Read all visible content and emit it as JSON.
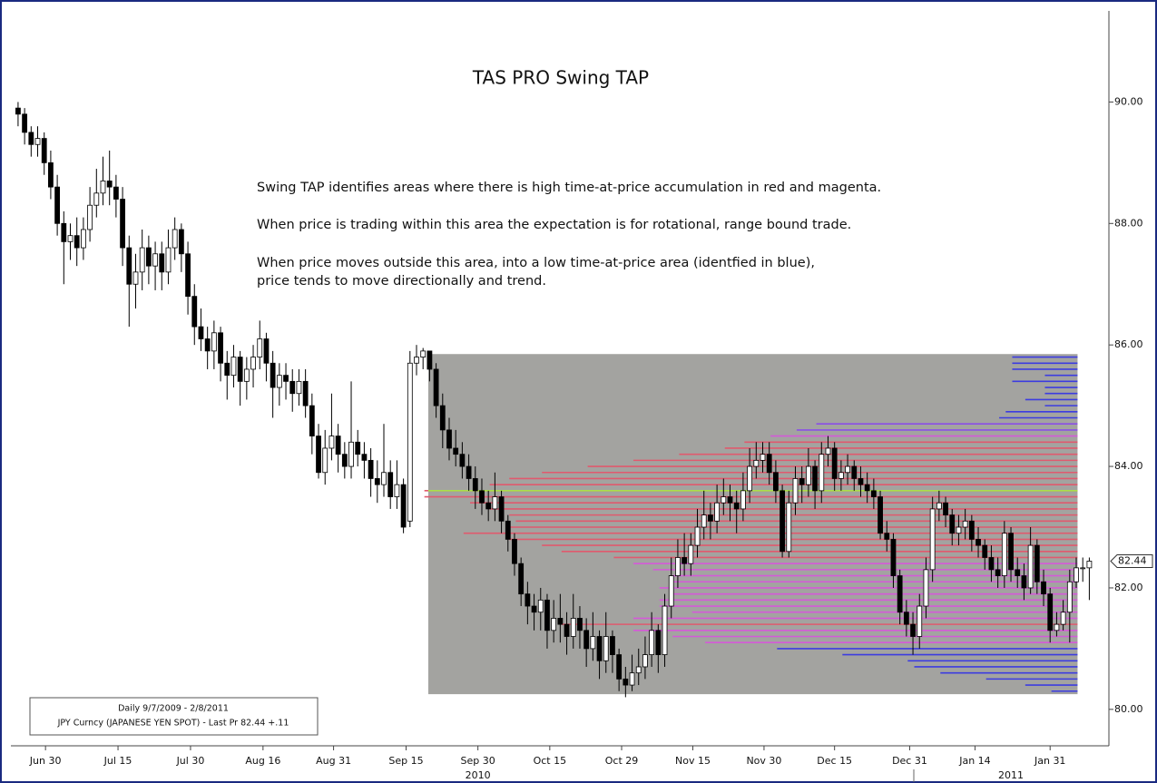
{
  "chart_data": {
    "type": "candlestick",
    "title": "TAS PRO Swing TAP",
    "annotations": [
      "Swing TAP identifies areas where there is high time-at-price accumulation in red and magenta.",
      "When price is trading within this area the expectation is for rotational, range bound trade.",
      "When price moves outside this area, into a low time-at-price area (identfied in blue),",
      "price tends to move directionally and trend."
    ],
    "info_box": [
      "Daily 9/7/2009 - 2/8/2011",
      "JPY Curncy (JAPANESE YEN SPOT) - Last Pr 82.44  +.11"
    ],
    "last_price": 82.44,
    "up_color": "#ffffff",
    "down_color": "#000000",
    "xlim": [
      -1.1,
      167
    ],
    "xticks": [
      {
        "value": 4.2,
        "label": "Jun 30"
      },
      {
        "value": 15.3,
        "label": "Jul 15"
      },
      {
        "value": 26.4,
        "label": "Jul 30"
      },
      {
        "value": 37.5,
        "label": "Aug 16"
      },
      {
        "value": 48.3,
        "label": "Aug 31"
      },
      {
        "value": 59.4,
        "label": "Sep 15"
      },
      {
        "value": 70.4,
        "label": "Sep 30"
      },
      {
        "value": 81.4,
        "label": "Oct 15"
      },
      {
        "value": 92.4,
        "label": "Oct 29"
      },
      {
        "value": 103.3,
        "label": "Nov 15"
      },
      {
        "value": 114.2,
        "label": "Nov 30"
      },
      {
        "value": 125,
        "label": "Dec 15"
      },
      {
        "value": 136.5,
        "label": "Dec 31"
      },
      {
        "value": 146.5,
        "label": "Jan 14"
      },
      {
        "value": 158,
        "label": "Jan 31"
      }
    ],
    "x_year_labels": [
      {
        "value": 70.4,
        "label": "2010"
      },
      {
        "value": 152,
        "label": "2011"
      }
    ],
    "ylim": [
      79.4,
      91.5
    ],
    "yticks": [
      {
        "value": 80,
        "label": "80.00"
      },
      {
        "value": 82,
        "label": "82.00"
      },
      {
        "value": 84,
        "label": "84.00"
      },
      {
        "value": 86,
        "label": "86.00"
      },
      {
        "value": 88,
        "label": "88.00"
      },
      {
        "value": 90,
        "label": "90.00"
      }
    ],
    "ohlc": [
      [
        89.9,
        90.0,
        89.6,
        89.8
      ],
      [
        89.8,
        89.9,
        89.3,
        89.5
      ],
      [
        89.5,
        89.6,
        89.1,
        89.3
      ],
      [
        89.3,
        89.6,
        89.1,
        89.4
      ],
      [
        89.4,
        89.5,
        88.8,
        89.0
      ],
      [
        89.0,
        89.2,
        88.4,
        88.6
      ],
      [
        88.6,
        88.8,
        87.8,
        88.0
      ],
      [
        88.0,
        88.2,
        87.0,
        87.7
      ],
      [
        87.7,
        88.0,
        87.4,
        87.8
      ],
      [
        87.8,
        88.1,
        87.3,
        87.6
      ],
      [
        87.6,
        88.1,
        87.4,
        87.9
      ],
      [
        87.9,
        88.6,
        87.7,
        88.3
      ],
      [
        88.3,
        88.9,
        88.1,
        88.5
      ],
      [
        88.5,
        89.1,
        88.3,
        88.7
      ],
      [
        88.7,
        89.2,
        88.3,
        88.6
      ],
      [
        88.6,
        88.8,
        88.1,
        88.4
      ],
      [
        88.4,
        88.6,
        87.3,
        87.6
      ],
      [
        87.6,
        87.8,
        86.3,
        87.0
      ],
      [
        87.0,
        87.5,
        86.6,
        87.2
      ],
      [
        87.2,
        87.9,
        86.9,
        87.6
      ],
      [
        87.6,
        87.8,
        87.0,
        87.3
      ],
      [
        87.3,
        87.7,
        86.9,
        87.5
      ],
      [
        87.5,
        87.7,
        86.9,
        87.2
      ],
      [
        87.2,
        87.9,
        87.0,
        87.6
      ],
      [
        87.6,
        88.1,
        87.4,
        87.9
      ],
      [
        87.9,
        88.0,
        87.2,
        87.5
      ],
      [
        87.5,
        87.7,
        86.5,
        86.8
      ],
      [
        86.8,
        87.0,
        86.0,
        86.3
      ],
      [
        86.3,
        86.6,
        85.9,
        86.1
      ],
      [
        86.1,
        86.3,
        85.6,
        85.9
      ],
      [
        85.9,
        86.4,
        85.6,
        86.2
      ],
      [
        86.2,
        86.3,
        85.4,
        85.7
      ],
      [
        85.7,
        85.9,
        85.1,
        85.5
      ],
      [
        85.5,
        86.0,
        85.3,
        85.8
      ],
      [
        85.8,
        85.9,
        85.0,
        85.4
      ],
      [
        85.4,
        85.8,
        85.1,
        85.6
      ],
      [
        85.6,
        86.0,
        85.3,
        85.8
      ],
      [
        85.8,
        86.4,
        85.6,
        86.1
      ],
      [
        86.1,
        86.2,
        85.4,
        85.7
      ],
      [
        85.7,
        85.9,
        84.8,
        85.3
      ],
      [
        85.3,
        85.7,
        85.0,
        85.5
      ],
      [
        85.5,
        85.7,
        85.1,
        85.4
      ],
      [
        85.4,
        85.6,
        84.9,
        85.2
      ],
      [
        85.2,
        85.6,
        85.0,
        85.4
      ],
      [
        85.4,
        85.6,
        84.8,
        85.0
      ],
      [
        85.0,
        85.2,
        84.2,
        84.5
      ],
      [
        84.5,
        84.7,
        83.8,
        83.9
      ],
      [
        83.9,
        84.6,
        83.7,
        84.3
      ],
      [
        84.3,
        85.2,
        84.1,
        84.5
      ],
      [
        84.5,
        84.7,
        83.9,
        84.2
      ],
      [
        84.2,
        84.4,
        83.8,
        84.0
      ],
      [
        84.0,
        85.4,
        83.8,
        84.4
      ],
      [
        84.4,
        84.6,
        84.0,
        84.2
      ],
      [
        84.2,
        84.4,
        83.8,
        84.1
      ],
      [
        84.1,
        84.3,
        83.5,
        83.8
      ],
      [
        83.8,
        84.1,
        83.4,
        83.7
      ],
      [
        83.7,
        84.7,
        83.5,
        83.9
      ],
      [
        83.9,
        84.1,
        83.3,
        83.5
      ],
      [
        83.5,
        84.1,
        83.3,
        83.7
      ],
      [
        83.7,
        83.8,
        82.9,
        83.0
      ],
      [
        83.1,
        85.9,
        83.0,
        85.7
      ],
      [
        85.7,
        86.0,
        85.5,
        85.8
      ],
      [
        85.8,
        85.95,
        85.6,
        85.9
      ],
      [
        85.9,
        85.9,
        85.4,
        85.6
      ],
      [
        85.6,
        85.7,
        84.8,
        85.0
      ],
      [
        85.0,
        85.2,
        84.3,
        84.6
      ],
      [
        84.6,
        84.8,
        84.1,
        84.3
      ],
      [
        84.3,
        84.6,
        84.0,
        84.2
      ],
      [
        84.2,
        84.4,
        83.8,
        84.0
      ],
      [
        84.0,
        84.2,
        83.6,
        83.8
      ],
      [
        83.8,
        84.0,
        83.3,
        83.6
      ],
      [
        83.6,
        83.8,
        83.2,
        83.4
      ],
      [
        83.4,
        83.6,
        83.1,
        83.3
      ],
      [
        83.3,
        83.9,
        83.1,
        83.5
      ],
      [
        83.5,
        83.6,
        82.9,
        83.1
      ],
      [
        83.1,
        83.2,
        82.6,
        82.8
      ],
      [
        82.8,
        82.9,
        82.2,
        82.4
      ],
      [
        82.4,
        82.5,
        81.7,
        81.9
      ],
      [
        81.9,
        82.1,
        81.4,
        81.7
      ],
      [
        81.7,
        81.9,
        81.3,
        81.6
      ],
      [
        81.6,
        82.0,
        81.3,
        81.8
      ],
      [
        81.8,
        81.9,
        81.0,
        81.3
      ],
      [
        81.3,
        81.8,
        81.1,
        81.5
      ],
      [
        81.5,
        81.9,
        81.1,
        81.4
      ],
      [
        81.4,
        81.6,
        80.9,
        81.2
      ],
      [
        81.2,
        81.9,
        81.0,
        81.5
      ],
      [
        81.5,
        81.7,
        81.0,
        81.3
      ],
      [
        81.3,
        81.5,
        80.7,
        81.0
      ],
      [
        81.0,
        81.6,
        80.8,
        81.2
      ],
      [
        81.2,
        81.3,
        80.5,
        80.8
      ],
      [
        80.8,
        81.6,
        80.6,
        81.2
      ],
      [
        81.2,
        81.3,
        80.6,
        80.9
      ],
      [
        80.9,
        81.0,
        80.3,
        80.5
      ],
      [
        80.5,
        80.7,
        80.2,
        80.4
      ],
      [
        80.4,
        80.9,
        80.3,
        80.6
      ],
      [
        80.6,
        81.0,
        80.4,
        80.7
      ],
      [
        80.7,
        81.2,
        80.5,
        80.9
      ],
      [
        80.9,
        81.6,
        80.7,
        81.3
      ],
      [
        81.3,
        81.4,
        80.6,
        80.9
      ],
      [
        80.9,
        81.9,
        80.7,
        81.7
      ],
      [
        81.7,
        82.5,
        81.5,
        82.2
      ],
      [
        82.2,
        82.8,
        82.0,
        82.5
      ],
      [
        82.5,
        82.9,
        82.2,
        82.4
      ],
      [
        82.4,
        82.9,
        82.2,
        82.7
      ],
      [
        82.7,
        83.3,
        82.5,
        83.0
      ],
      [
        83.0,
        83.6,
        82.8,
        83.2
      ],
      [
        83.2,
        83.4,
        82.8,
        83.1
      ],
      [
        83.1,
        83.7,
        82.9,
        83.4
      ],
      [
        83.4,
        83.8,
        83.2,
        83.5
      ],
      [
        83.5,
        83.7,
        83.1,
        83.4
      ],
      [
        83.4,
        83.6,
        82.9,
        83.3
      ],
      [
        83.3,
        83.9,
        83.1,
        83.6
      ],
      [
        83.6,
        84.3,
        83.4,
        84.0
      ],
      [
        84.0,
        84.4,
        83.8,
        84.1
      ],
      [
        84.1,
        84.4,
        83.9,
        84.2
      ],
      [
        84.2,
        84.4,
        83.7,
        83.9
      ],
      [
        83.9,
        84.1,
        83.4,
        83.6
      ],
      [
        83.6,
        83.7,
        82.5,
        82.6
      ],
      [
        82.6,
        83.6,
        82.5,
        83.4
      ],
      [
        83.4,
        84.0,
        83.2,
        83.8
      ],
      [
        83.8,
        84.0,
        83.4,
        83.7
      ],
      [
        83.7,
        84.3,
        83.5,
        84.0
      ],
      [
        84.0,
        84.1,
        83.3,
        83.6
      ],
      [
        83.6,
        84.4,
        83.4,
        84.2
      ],
      [
        84.2,
        84.5,
        84.0,
        84.3
      ],
      [
        84.3,
        84.4,
        83.6,
        83.8
      ],
      [
        83.8,
        84.1,
        83.6,
        83.9
      ],
      [
        83.9,
        84.2,
        83.7,
        84.0
      ],
      [
        84.0,
        84.1,
        83.6,
        83.8
      ],
      [
        83.8,
        84.0,
        83.5,
        83.7
      ],
      [
        83.7,
        83.9,
        83.4,
        83.6
      ],
      [
        83.6,
        83.8,
        83.3,
        83.5
      ],
      [
        83.5,
        83.6,
        82.8,
        82.9
      ],
      [
        82.9,
        83.1,
        82.6,
        82.8
      ],
      [
        82.8,
        82.9,
        82.0,
        82.2
      ],
      [
        82.2,
        82.3,
        81.4,
        81.6
      ],
      [
        81.6,
        81.8,
        81.2,
        81.4
      ],
      [
        81.4,
        81.6,
        80.9,
        81.2
      ],
      [
        81.2,
        81.9,
        81.0,
        81.7
      ],
      [
        81.7,
        82.5,
        81.5,
        82.3
      ],
      [
        82.3,
        83.5,
        82.1,
        83.3
      ],
      [
        83.3,
        83.6,
        83.1,
        83.4
      ],
      [
        83.4,
        83.5,
        83.0,
        83.2
      ],
      [
        83.2,
        83.3,
        82.7,
        82.9
      ],
      [
        82.9,
        83.2,
        82.7,
        83.0
      ],
      [
        83.0,
        83.3,
        82.8,
        83.1
      ],
      [
        83.1,
        83.2,
        82.6,
        82.8
      ],
      [
        82.8,
        83.0,
        82.5,
        82.7
      ],
      [
        82.7,
        82.8,
        82.3,
        82.5
      ],
      [
        82.5,
        82.7,
        82.1,
        82.3
      ],
      [
        82.3,
        82.5,
        82.0,
        82.2
      ],
      [
        82.2,
        83.1,
        82.0,
        82.9
      ],
      [
        82.9,
        83.0,
        82.1,
        82.3
      ],
      [
        82.3,
        82.5,
        82.0,
        82.2
      ],
      [
        82.2,
        82.4,
        81.8,
        82.0
      ],
      [
        82.0,
        83.0,
        81.9,
        82.7
      ],
      [
        82.7,
        82.8,
        81.9,
        82.1
      ],
      [
        82.1,
        82.3,
        81.7,
        81.9
      ],
      [
        81.9,
        82.0,
        81.1,
        81.3
      ],
      [
        81.3,
        81.6,
        81.2,
        81.4
      ],
      [
        81.4,
        81.8,
        81.3,
        81.6
      ],
      [
        81.6,
        82.3,
        81.1,
        82.1
      ],
      [
        82.1,
        82.5,
        82.0,
        82.33
      ],
      [
        82.33,
        82.5,
        82.1,
        82.33
      ],
      [
        82.33,
        82.5,
        81.8,
        82.44
      ]
    ],
    "profile": {
      "box_x": [
        62.8,
        162.2
      ],
      "box_y": [
        80.25,
        85.85
      ],
      "box_color": "#a3a3a0",
      "poc": 83.6,
      "poc_color": "#a8e04a",
      "levels": [
        85.8,
        85.7,
        85.6,
        85.5,
        85.4,
        85.3,
        85.2,
        85.1,
        85.0,
        84.9,
        84.8,
        84.7,
        84.6,
        84.5,
        84.4,
        84.3,
        84.2,
        84.1,
        84.0,
        83.9,
        83.8,
        83.7,
        83.6,
        83.5,
        83.4,
        83.3,
        83.2,
        83.1,
        83.0,
        82.9,
        82.8,
        82.7,
        82.6,
        82.5,
        82.4,
        82.3,
        82.2,
        82.1,
        82.0,
        81.9,
        81.8,
        81.7,
        81.6,
        81.5,
        81.4,
        81.3,
        81.2,
        81.1,
        81.0,
        80.9,
        80.8,
        80.7,
        80.6,
        80.5,
        80.4,
        80.3
      ],
      "counts": [
        10,
        10,
        10,
        5,
        10,
        5,
        5,
        8,
        5,
        11,
        12,
        40,
        43,
        47,
        51,
        54,
        61,
        68,
        75,
        82,
        87,
        90,
        100,
        100,
        93,
        90,
        87,
        86,
        87,
        94,
        87,
        82,
        79,
        71,
        68,
        65,
        62,
        62,
        64,
        62,
        64,
        64,
        59,
        68,
        79,
        68,
        62,
        57,
        46,
        36,
        26,
        25,
        21,
        14,
        8,
        4
      ],
      "colors": [
        "#3c3ce0",
        "#3c3ce0",
        "#3c3ce0",
        "#3c3ce0",
        "#3c3ce0",
        "#3c3ce0",
        "#3c3ce0",
        "#3c3ce0",
        "#3c3ce0",
        "#3c3ce0",
        "#3c3ce0",
        "#8a4fe6",
        "#8a4fe6",
        "#d45ad8",
        "#e05a6e",
        "#e05a6e",
        "#e05a6e",
        "#e05a6e",
        "#e05a6e",
        "#e05a6e",
        "#e05a6e",
        "#e05a6e",
        "#e05a6e",
        "#e05a6e",
        "#e05a6e",
        "#e05a6e",
        "#e05a6e",
        "#e05a6e",
        "#e05a6e",
        "#e05a6e",
        "#e05a6e",
        "#e05a6e",
        "#e05a6e",
        "#e05a6e",
        "#d45ad8",
        "#d45ad8",
        "#d45ad8",
        "#d45ad8",
        "#d45ad8",
        "#d45ad8",
        "#d45ad8",
        "#d45ad8",
        "#d45ad8",
        "#d45ad8",
        "#e05a6e",
        "#d45ad8",
        "#d45ad8",
        "#d45ad8",
        "#3c3ce0",
        "#3c3ce0",
        "#3c3ce0",
        "#3c3ce0",
        "#3c3ce0",
        "#3c3ce0",
        "#3c3ce0",
        "#3c3ce0"
      ]
    }
  }
}
